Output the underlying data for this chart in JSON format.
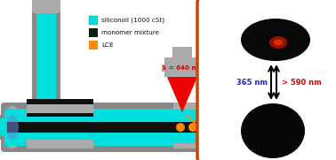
{
  "bg_color": "#ffffff",
  "cyan": "#00dede",
  "gray_outer": "#888888",
  "gray_light": "#aaaaaa",
  "dark_green": "#0a200a",
  "black": "#111111",
  "orange_dot": "#ff8800",
  "red_laser": "#ee0000",
  "red_text": "#dd0000",
  "blue_text": "#2222cc",
  "orange_border": "#cc4400",
  "right_bg": "#ffffff",
  "text_lambda": "λ = 640 nm",
  "text_365": "365 nm",
  "text_590": "> 590 nm",
  "label_silicone": "siliconoil (1000 cSt)",
  "label_monomer": "monomer mixture",
  "label_lce": "LCE",
  "legend_cyan": "#00dede",
  "legend_dark": "#0a200a",
  "legend_orange": "#ff8800"
}
